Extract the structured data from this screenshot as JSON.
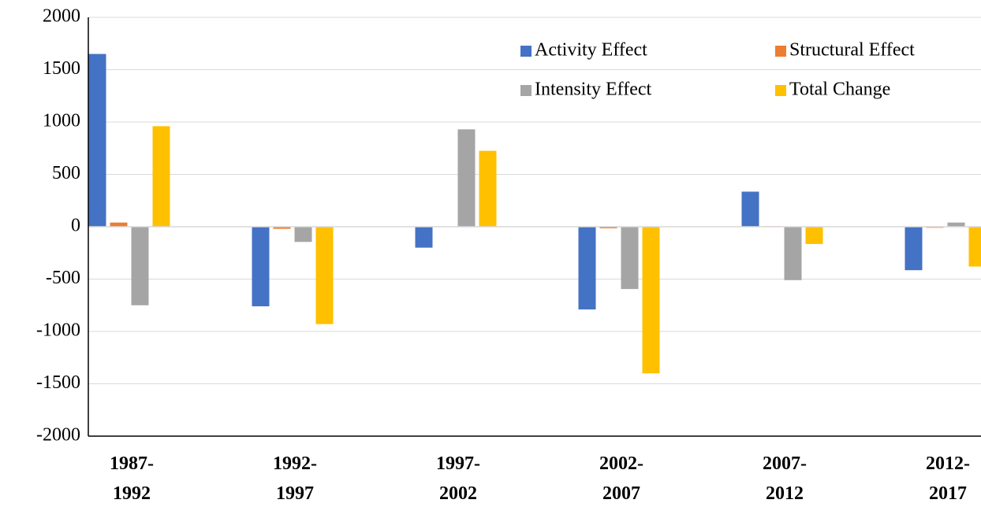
{
  "chart_data": {
    "type": "bar",
    "categories": [
      "1987-1992",
      "1992-1997",
      "1997-2002",
      "2002-2007",
      "2007-2012",
      "2012-2017"
    ],
    "series": [
      {
        "name": "Activity Effect",
        "color": "#4472c4",
        "values": [
          1650,
          -760,
          -200,
          -790,
          335,
          -415
        ]
      },
      {
        "name": "Structural Effect",
        "color": "#ed7d31",
        "values": [
          40,
          -20,
          0,
          -15,
          5,
          -10
        ]
      },
      {
        "name": "Intensity Effect",
        "color": "#a5a5a5",
        "values": [
          -750,
          -145,
          930,
          -595,
          -510,
          40
        ]
      },
      {
        "name": "Total Change",
        "color": "#ffc000",
        "values": [
          960,
          -930,
          725,
          -1400,
          -165,
          -380
        ]
      }
    ],
    "ylim": [
      -2000,
      2000
    ],
    "yticks": [
      -2000,
      -1500,
      -1000,
      -500,
      0,
      500,
      1000,
      1500,
      2000
    ],
    "grid": true,
    "legend": "top-right"
  }
}
